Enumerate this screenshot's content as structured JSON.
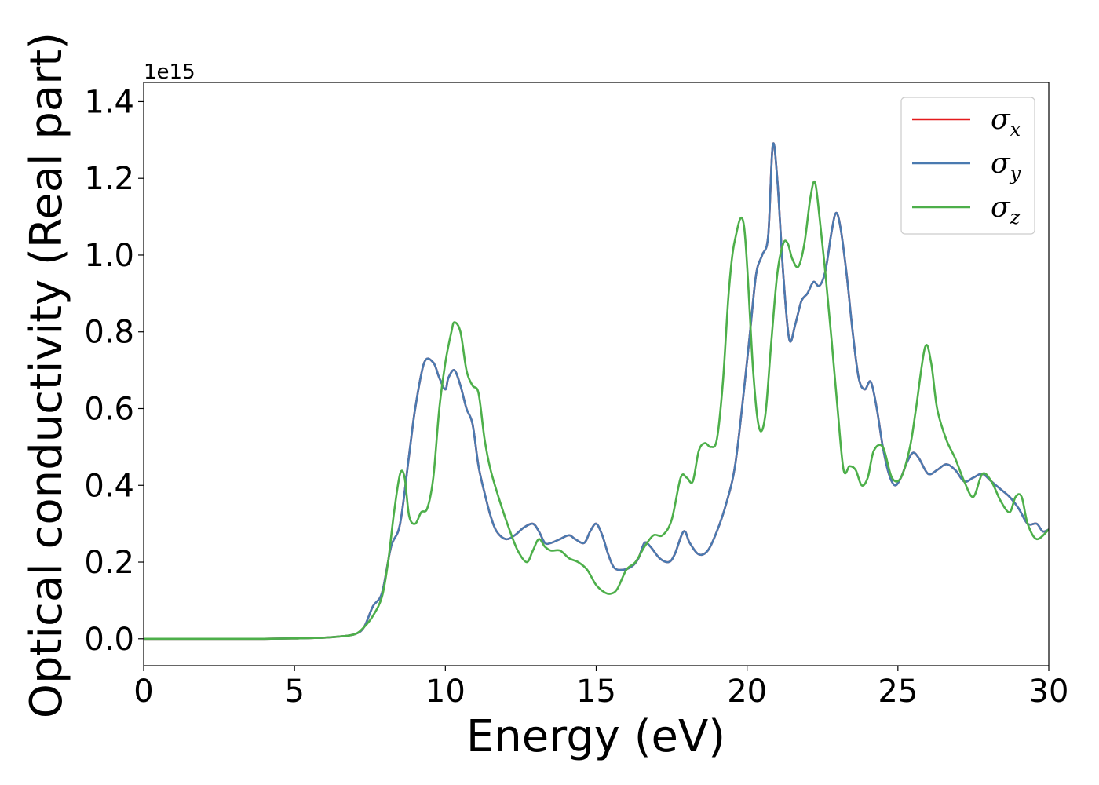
{
  "chart_data": {
    "type": "line",
    "xlabel": "Energy (eV)",
    "ylabel": "Optical conductivity (Real part)",
    "y_offset_label": "1e15",
    "xlim": [
      0,
      30
    ],
    "ylim": [
      -0.07,
      1.45
    ],
    "x_ticks": [
      0,
      5,
      10,
      15,
      20,
      25,
      30
    ],
    "x_tick_labels": [
      "0",
      "5",
      "10",
      "15",
      "20",
      "25",
      "30"
    ],
    "y_ticks": [
      0.0,
      0.2,
      0.4,
      0.6,
      0.8,
      1.0,
      1.2,
      1.4
    ],
    "y_tick_labels": [
      "0.0",
      "0.2",
      "0.4",
      "0.6",
      "0.8",
      "1.0",
      "1.2",
      "1.4"
    ],
    "grid": false,
    "legend_position": "top-right",
    "series": [
      {
        "name": "σx",
        "legend_base": "σ",
        "legend_sub": "x",
        "color": "#e41a1c",
        "x": [
          0,
          2,
          4,
          5,
          6,
          6.5,
          7,
          7.3,
          7.6,
          7.9,
          8.2,
          8.5,
          8.8,
          9.0,
          9.3,
          9.6,
          9.8,
          10.0,
          10.1,
          10.3,
          10.5,
          10.7,
          10.9,
          11.1,
          11.3,
          11.5,
          11.7,
          12.0,
          12.3,
          12.6,
          12.9,
          13.1,
          13.3,
          13.5,
          13.8,
          14.1,
          14.3,
          14.6,
          14.8,
          15.0,
          15.2,
          15.4,
          15.6,
          15.9,
          16.2,
          16.4,
          16.6,
          16.8,
          17.1,
          17.4,
          17.6,
          17.9,
          18.1,
          18.4,
          18.7,
          19.0,
          19.3,
          19.6,
          19.9,
          20.1,
          20.3,
          20.5,
          20.7,
          20.85,
          21.0,
          21.2,
          21.4,
          21.6,
          21.8,
          22.0,
          22.2,
          22.4,
          22.6,
          22.8,
          22.95,
          23.1,
          23.3,
          23.5,
          23.7,
          23.9,
          24.1,
          24.3,
          24.5,
          24.7,
          24.9,
          25.1,
          25.3,
          25.5,
          25.7,
          26.0,
          26.3,
          26.6,
          26.9,
          27.2,
          27.5,
          27.8,
          28.1,
          28.4,
          28.7,
          29.0,
          29.3,
          29.6,
          29.8,
          30.0
        ],
        "y": [
          0.0,
          0.0,
          0.0,
          0.001,
          0.003,
          0.006,
          0.012,
          0.03,
          0.085,
          0.12,
          0.24,
          0.3,
          0.48,
          0.6,
          0.72,
          0.72,
          0.68,
          0.65,
          0.68,
          0.7,
          0.66,
          0.6,
          0.56,
          0.45,
          0.38,
          0.32,
          0.28,
          0.26,
          0.27,
          0.29,
          0.3,
          0.28,
          0.25,
          0.25,
          0.26,
          0.27,
          0.26,
          0.25,
          0.28,
          0.3,
          0.27,
          0.22,
          0.185,
          0.18,
          0.19,
          0.21,
          0.25,
          0.24,
          0.21,
          0.2,
          0.22,
          0.28,
          0.25,
          0.22,
          0.23,
          0.28,
          0.35,
          0.45,
          0.65,
          0.8,
          0.95,
          1.0,
          1.05,
          1.285,
          1.2,
          0.95,
          0.78,
          0.82,
          0.88,
          0.9,
          0.93,
          0.92,
          0.96,
          1.06,
          1.11,
          1.07,
          0.95,
          0.8,
          0.68,
          0.65,
          0.67,
          0.6,
          0.5,
          0.43,
          0.4,
          0.42,
          0.46,
          0.485,
          0.47,
          0.43,
          0.44,
          0.455,
          0.44,
          0.41,
          0.42,
          0.43,
          0.41,
          0.39,
          0.37,
          0.34,
          0.3,
          0.3,
          0.28,
          0.285
        ]
      },
      {
        "name": "σy",
        "legend_base": "σ",
        "legend_sub": "y",
        "color": "#4a7ab0",
        "x": [
          0,
          2,
          4,
          5,
          6,
          6.5,
          7,
          7.3,
          7.6,
          7.9,
          8.2,
          8.5,
          8.8,
          9.0,
          9.3,
          9.6,
          9.8,
          10.0,
          10.1,
          10.3,
          10.5,
          10.7,
          10.9,
          11.1,
          11.3,
          11.5,
          11.7,
          12.0,
          12.3,
          12.6,
          12.9,
          13.1,
          13.3,
          13.5,
          13.8,
          14.1,
          14.3,
          14.6,
          14.8,
          15.0,
          15.2,
          15.4,
          15.6,
          15.9,
          16.2,
          16.4,
          16.6,
          16.8,
          17.1,
          17.4,
          17.6,
          17.9,
          18.1,
          18.4,
          18.7,
          19.0,
          19.3,
          19.6,
          19.9,
          20.1,
          20.3,
          20.5,
          20.7,
          20.85,
          21.0,
          21.2,
          21.4,
          21.6,
          21.8,
          22.0,
          22.2,
          22.4,
          22.6,
          22.8,
          22.95,
          23.1,
          23.3,
          23.5,
          23.7,
          23.9,
          24.1,
          24.3,
          24.5,
          24.7,
          24.9,
          25.1,
          25.3,
          25.5,
          25.7,
          26.0,
          26.3,
          26.6,
          26.9,
          27.2,
          27.5,
          27.8,
          28.1,
          28.4,
          28.7,
          29.0,
          29.3,
          29.6,
          29.8,
          30.0
        ],
        "y": [
          0.0,
          0.0,
          0.0,
          0.001,
          0.003,
          0.006,
          0.012,
          0.03,
          0.085,
          0.12,
          0.24,
          0.3,
          0.48,
          0.6,
          0.72,
          0.72,
          0.68,
          0.65,
          0.68,
          0.7,
          0.66,
          0.6,
          0.56,
          0.45,
          0.38,
          0.32,
          0.28,
          0.26,
          0.27,
          0.29,
          0.3,
          0.28,
          0.25,
          0.25,
          0.26,
          0.27,
          0.26,
          0.25,
          0.28,
          0.3,
          0.27,
          0.22,
          0.185,
          0.18,
          0.19,
          0.21,
          0.25,
          0.24,
          0.21,
          0.2,
          0.22,
          0.28,
          0.25,
          0.22,
          0.23,
          0.28,
          0.35,
          0.45,
          0.65,
          0.8,
          0.95,
          1.0,
          1.05,
          1.285,
          1.2,
          0.95,
          0.78,
          0.82,
          0.88,
          0.9,
          0.93,
          0.92,
          0.96,
          1.06,
          1.11,
          1.07,
          0.95,
          0.8,
          0.68,
          0.65,
          0.67,
          0.6,
          0.5,
          0.43,
          0.4,
          0.42,
          0.46,
          0.485,
          0.47,
          0.43,
          0.44,
          0.455,
          0.44,
          0.41,
          0.42,
          0.43,
          0.41,
          0.39,
          0.37,
          0.34,
          0.3,
          0.3,
          0.28,
          0.285
        ]
      },
      {
        "name": "σz",
        "legend_base": "σ",
        "legend_sub": "z",
        "color": "#4daf4a",
        "x": [
          0,
          2,
          4,
          5,
          6,
          6.5,
          7,
          7.3,
          7.6,
          7.9,
          8.1,
          8.3,
          8.5,
          8.65,
          8.8,
          9.0,
          9.2,
          9.4,
          9.6,
          9.8,
          10.0,
          10.2,
          10.3,
          10.5,
          10.7,
          10.9,
          11.1,
          11.3,
          11.5,
          11.8,
          12.1,
          12.4,
          12.7,
          12.9,
          13.1,
          13.3,
          13.5,
          13.8,
          14.1,
          14.4,
          14.7,
          15.0,
          15.3,
          15.5,
          15.7,
          16.0,
          16.3,
          16.6,
          16.9,
          17.2,
          17.5,
          17.8,
          18.0,
          18.2,
          18.4,
          18.6,
          18.8,
          19.0,
          19.2,
          19.4,
          19.6,
          19.9,
          20.2,
          20.4,
          20.6,
          20.8,
          21.0,
          21.2,
          21.35,
          21.5,
          21.7,
          21.9,
          22.1,
          22.25,
          22.4,
          22.6,
          22.8,
          23.0,
          23.2,
          23.4,
          23.6,
          23.8,
          24.0,
          24.2,
          24.5,
          24.8,
          25.1,
          25.4,
          25.6,
          25.9,
          26.1,
          26.3,
          26.6,
          26.9,
          27.2,
          27.5,
          27.8,
          28.1,
          28.4,
          28.7,
          28.9,
          29.1,
          29.3,
          29.6,
          30.0
        ],
        "y": [
          0.0,
          0.0,
          0.0,
          0.001,
          0.003,
          0.006,
          0.012,
          0.03,
          0.06,
          0.11,
          0.2,
          0.33,
          0.43,
          0.42,
          0.32,
          0.3,
          0.33,
          0.34,
          0.42,
          0.6,
          0.72,
          0.8,
          0.825,
          0.8,
          0.7,
          0.66,
          0.64,
          0.52,
          0.44,
          0.36,
          0.29,
          0.23,
          0.2,
          0.23,
          0.26,
          0.24,
          0.23,
          0.23,
          0.21,
          0.2,
          0.18,
          0.14,
          0.12,
          0.118,
          0.13,
          0.18,
          0.2,
          0.24,
          0.27,
          0.27,
          0.31,
          0.42,
          0.42,
          0.41,
          0.49,
          0.51,
          0.5,
          0.52,
          0.67,
          0.91,
          1.04,
          1.075,
          0.7,
          0.55,
          0.58,
          0.77,
          0.95,
          1.03,
          1.03,
          0.99,
          0.97,
          1.03,
          1.15,
          1.19,
          1.1,
          0.95,
          0.78,
          0.6,
          0.44,
          0.45,
          0.44,
          0.4,
          0.42,
          0.49,
          0.5,
          0.42,
          0.42,
          0.5,
          0.6,
          0.76,
          0.72,
          0.6,
          0.52,
          0.47,
          0.41,
          0.37,
          0.43,
          0.41,
          0.36,
          0.33,
          0.37,
          0.37,
          0.3,
          0.26,
          0.285
        ]
      }
    ]
  }
}
